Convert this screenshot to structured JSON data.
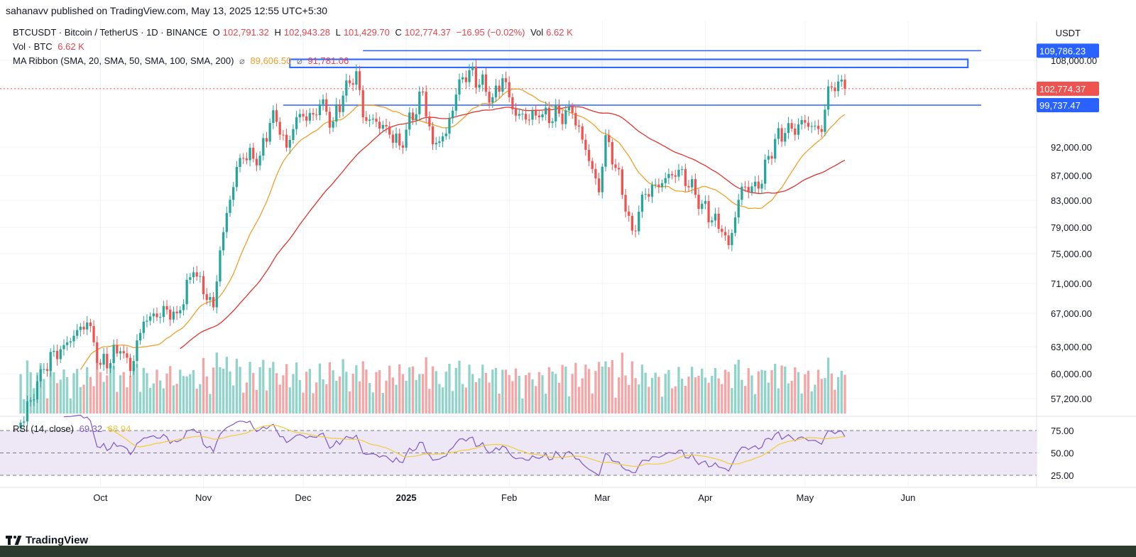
{
  "publish_line": "sahanavv published on TradingView.com, May 13, 2025 12:55 UTC+5:30",
  "legend": {
    "symbol": "BTCUSDT · Bitcoin / TetherUS · 1D · BINANCE",
    "o_label": "O",
    "o_value": "102,791.32",
    "h_label": "H",
    "h_value": "102,943.28",
    "l_label": "L",
    "l_value": "101,429.70",
    "c_label": "C",
    "c_value": "102,774.37",
    "change": "−16.95 (−0.02%)",
    "vol_label": "Vol",
    "vol_value": "6.62 K",
    "vol_row_label": "Vol · BTC",
    "vol_row_value": "6.62 K",
    "ma_label": "MA Ribbon (SMA, 20, SMA, 50, SMA, 100, SMA, 200)",
    "ma_value_1": "89,606.50",
    "ma_value_2": "91,781.06",
    "rsi_label": "RSI (14, close)",
    "rsi_value": "69.32",
    "rsi_ma_value": "68.94"
  },
  "unit_label": "USDT",
  "footer": {
    "logo_text": "TradingView"
  },
  "colors": {
    "bull": "#26a69a",
    "bear": "#ef5350",
    "vol_bull": "#8fd3c9",
    "vol_bear": "#f5a5a5",
    "ma_fast": "#f0a02c",
    "ma_slow": "#e0332f",
    "level_line": "#2962ff",
    "rsi_line": "#7e57c2",
    "rsi_ma": "#f2cc3a",
    "rsi_band": "#ede7f6"
  },
  "chart_data": {
    "type": "candlestick",
    "price_axis": [
      "108,000.00",
      "92,000.00",
      "87,000.00",
      "83,000.00",
      "79,000.00",
      "75,000.00",
      "71,000.00",
      "67,000.00",
      "63,000.00",
      "60,000.00",
      "57,200.00"
    ],
    "price_labels": [
      {
        "text": "109,786.23",
        "value": 109786.23,
        "style": "level"
      },
      {
        "text": "102,774.37",
        "value": 102774.37,
        "style": "last"
      },
      {
        "text": "99,737.47",
        "value": 99737.47,
        "style": "level"
      }
    ],
    "rsi_axis": [
      "75.00",
      "50.00",
      "25.00"
    ],
    "x_labels": [
      {
        "text": "Oct",
        "date": "2024-10-01",
        "bold": false
      },
      {
        "text": "Nov",
        "date": "2024-11-01",
        "bold": false
      },
      {
        "text": "Dec",
        "date": "2024-12-01",
        "bold": false
      },
      {
        "text": "2025",
        "date": "2025-01-01",
        "bold": true
      },
      {
        "text": "Feb",
        "date": "2025-02-01",
        "bold": false
      },
      {
        "text": "Mar",
        "date": "2025-03-01",
        "bold": false
      },
      {
        "text": "Apr",
        "date": "2025-04-01",
        "bold": false
      },
      {
        "text": "May",
        "date": "2025-05-01",
        "bold": false
      },
      {
        "text": "Jun",
        "date": "2025-06-01",
        "bold": false
      }
    ],
    "levels": [
      {
        "value": 109786.23,
        "from": "2024-12-19",
        "to": "2025-06-23"
      },
      {
        "value": 99737.47,
        "from": "2024-11-25",
        "to": "2025-06-23"
      }
    ],
    "zone": {
      "from": "2024-11-27",
      "to": "2025-06-19",
      "low": 106700,
      "high": 108200
    },
    "close_keyframes": [
      {
        "date": "2024-09-06",
        "close": 53900
      },
      {
        "date": "2024-09-10",
        "close": 57000
      },
      {
        "date": "2024-09-13",
        "close": 60500
      },
      {
        "date": "2024-09-20",
        "close": 63200
      },
      {
        "date": "2024-09-27",
        "close": 65900
      },
      {
        "date": "2024-10-01",
        "close": 61000
      },
      {
        "date": "2024-10-07",
        "close": 62500
      },
      {
        "date": "2024-10-10",
        "close": 60300
      },
      {
        "date": "2024-10-14",
        "close": 66000
      },
      {
        "date": "2024-10-21",
        "close": 67500
      },
      {
        "date": "2024-10-24",
        "close": 67000
      },
      {
        "date": "2024-10-29",
        "close": 72500
      },
      {
        "date": "2024-11-04",
        "close": 67800
      },
      {
        "date": "2024-11-06",
        "close": 75500
      },
      {
        "date": "2024-11-11",
        "close": 88500
      },
      {
        "date": "2024-11-13",
        "close": 90000
      },
      {
        "date": "2024-11-18",
        "close": 90500
      },
      {
        "date": "2024-11-22",
        "close": 98800
      },
      {
        "date": "2024-11-26",
        "close": 91900
      },
      {
        "date": "2024-11-29",
        "close": 97500
      },
      {
        "date": "2024-12-04",
        "close": 98000
      },
      {
        "date": "2024-12-06",
        "close": 99900
      },
      {
        "date": "2024-12-10",
        "close": 96700
      },
      {
        "date": "2024-12-13",
        "close": 101500
      },
      {
        "date": "2024-12-17",
        "close": 106000
      },
      {
        "date": "2024-12-19",
        "close": 97500
      },
      {
        "date": "2024-12-26",
        "close": 95800
      },
      {
        "date": "2024-12-30",
        "close": 92300
      },
      {
        "date": "2025-01-06",
        "close": 102200
      },
      {
        "date": "2025-01-09",
        "close": 92500
      },
      {
        "date": "2025-01-13",
        "close": 94500
      },
      {
        "date": "2025-01-17",
        "close": 104500
      },
      {
        "date": "2025-01-20",
        "close": 106200
      },
      {
        "date": "2025-01-27",
        "close": 101200
      },
      {
        "date": "2025-01-30",
        "close": 104700
      },
      {
        "date": "2025-02-03",
        "close": 97800
      },
      {
        "date": "2025-02-10",
        "close": 97500
      },
      {
        "date": "2025-02-20",
        "close": 98300
      },
      {
        "date": "2025-02-24",
        "close": 91500
      },
      {
        "date": "2025-02-28",
        "close": 84300
      },
      {
        "date": "2025-03-02",
        "close": 94200
      },
      {
        "date": "2025-03-09",
        "close": 80700
      },
      {
        "date": "2025-03-10",
        "close": 78500
      },
      {
        "date": "2025-03-14",
        "close": 84000
      },
      {
        "date": "2025-03-24",
        "close": 88000
      },
      {
        "date": "2025-03-31",
        "close": 82500
      },
      {
        "date": "2025-04-06",
        "close": 78300
      },
      {
        "date": "2025-04-08",
        "close": 76300
      },
      {
        "date": "2025-04-12",
        "close": 85200
      },
      {
        "date": "2025-04-17",
        "close": 84900
      },
      {
        "date": "2025-04-22",
        "close": 93500
      },
      {
        "date": "2025-04-25",
        "close": 94600
      },
      {
        "date": "2025-05-01",
        "close": 96500
      },
      {
        "date": "2025-05-06",
        "close": 94800
      },
      {
        "date": "2025-05-08",
        "close": 103200
      },
      {
        "date": "2025-05-11",
        "close": 104100
      },
      {
        "date": "2025-05-13",
        "close": 102774.37
      }
    ]
  }
}
